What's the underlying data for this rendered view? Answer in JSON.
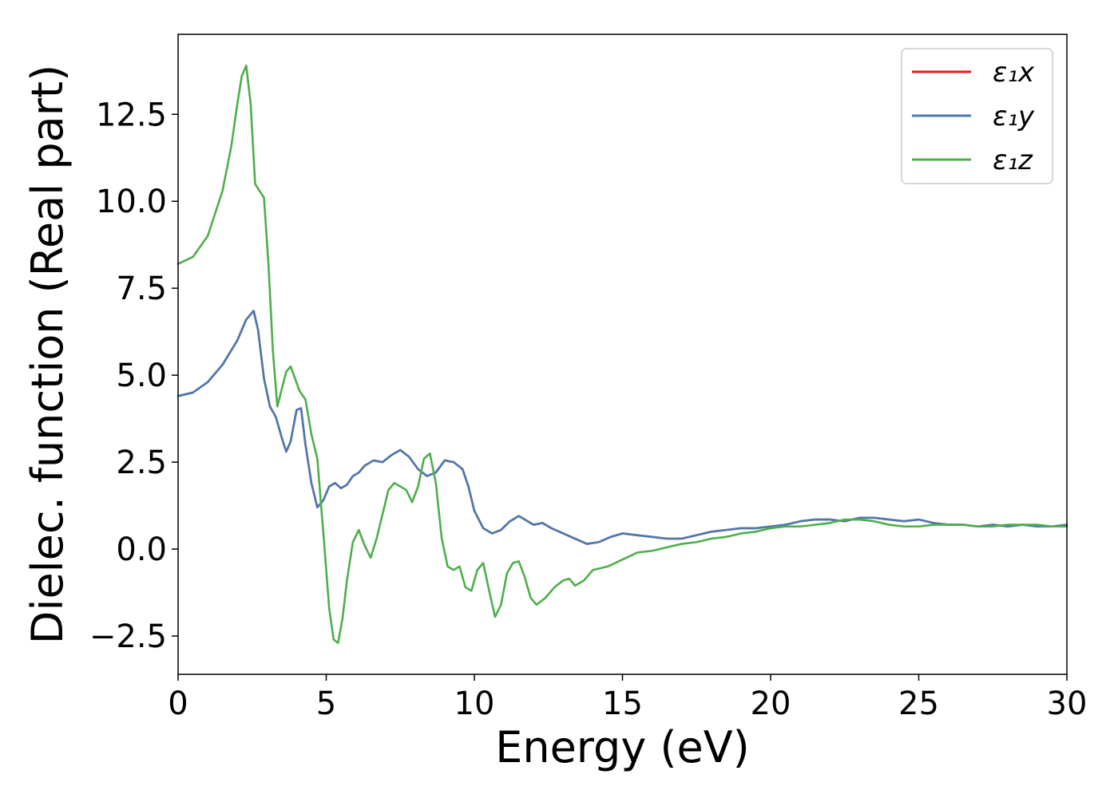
{
  "chart_data": {
    "type": "line",
    "xlabel": "Energy (eV)",
    "ylabel": "Dielec. function (Real part)",
    "xlim": [
      0,
      30
    ],
    "ylim": [
      -3.6,
      14.8
    ],
    "xticks": [
      "0",
      "5",
      "10",
      "15",
      "20",
      "25",
      "30"
    ],
    "yticks": [
      "−2.5",
      "0.0",
      "2.5",
      "5.0",
      "7.5",
      "10.0",
      "12.5"
    ],
    "legend_position": "top-right",
    "grid": false,
    "series": [
      {
        "name": "ε₁x",
        "color": "#e41a1c",
        "x": [
          0,
          0.5,
          1.0,
          1.5,
          2.0,
          2.3,
          2.55,
          2.7,
          2.9,
          3.1,
          3.3,
          3.5,
          3.65,
          3.8,
          4.0,
          4.15,
          4.3,
          4.5,
          4.7,
          4.9,
          5.1,
          5.3,
          5.5,
          5.7,
          5.9,
          6.1,
          6.3,
          6.6,
          6.9,
          7.2,
          7.5,
          7.8,
          8.1,
          8.4,
          8.7,
          9.0,
          9.3,
          9.6,
          9.8,
          10.0,
          10.3,
          10.6,
          10.9,
          11.2,
          11.5,
          11.7,
          12.0,
          12.3,
          12.6,
          13.0,
          13.4,
          13.8,
          14.2,
          14.6,
          15.0,
          15.5,
          16.0,
          16.5,
          17.0,
          17.5,
          18.0,
          18.5,
          19.0,
          19.5,
          20.0,
          20.5,
          21.0,
          21.5,
          22.0,
          22.5,
          23.0,
          23.5,
          24.0,
          24.5,
          25.0,
          25.5,
          26.0,
          26.5,
          27.0,
          27.5,
          28.0,
          28.5,
          29.0,
          29.5,
          30.0
        ],
        "y": [
          4.4,
          4.5,
          4.8,
          5.3,
          6.0,
          6.6,
          6.85,
          6.3,
          4.9,
          4.1,
          3.8,
          3.2,
          2.8,
          3.1,
          4.0,
          4.05,
          3.0,
          1.9,
          1.2,
          1.4,
          1.8,
          1.9,
          1.75,
          1.85,
          2.1,
          2.2,
          2.4,
          2.55,
          2.5,
          2.7,
          2.85,
          2.65,
          2.3,
          2.1,
          2.2,
          2.55,
          2.5,
          2.3,
          1.8,
          1.1,
          0.6,
          0.45,
          0.55,
          0.8,
          0.95,
          0.85,
          0.7,
          0.75,
          0.6,
          0.45,
          0.3,
          0.15,
          0.2,
          0.35,
          0.45,
          0.4,
          0.35,
          0.3,
          0.3,
          0.4,
          0.5,
          0.55,
          0.6,
          0.6,
          0.65,
          0.7,
          0.8,
          0.85,
          0.85,
          0.8,
          0.9,
          0.9,
          0.85,
          0.8,
          0.85,
          0.75,
          0.7,
          0.7,
          0.65,
          0.7,
          0.65,
          0.7,
          0.65,
          0.65,
          0.7
        ]
      },
      {
        "name": "ε₁y",
        "color": "#4a7ab0",
        "x": [
          0,
          0.5,
          1.0,
          1.5,
          2.0,
          2.3,
          2.55,
          2.7,
          2.9,
          3.1,
          3.3,
          3.5,
          3.65,
          3.8,
          4.0,
          4.15,
          4.3,
          4.5,
          4.7,
          4.9,
          5.1,
          5.3,
          5.5,
          5.7,
          5.9,
          6.1,
          6.3,
          6.6,
          6.9,
          7.2,
          7.5,
          7.8,
          8.1,
          8.4,
          8.7,
          9.0,
          9.3,
          9.6,
          9.8,
          10.0,
          10.3,
          10.6,
          10.9,
          11.2,
          11.5,
          11.7,
          12.0,
          12.3,
          12.6,
          13.0,
          13.4,
          13.8,
          14.2,
          14.6,
          15.0,
          15.5,
          16.0,
          16.5,
          17.0,
          17.5,
          18.0,
          18.5,
          19.0,
          19.5,
          20.0,
          20.5,
          21.0,
          21.5,
          22.0,
          22.5,
          23.0,
          23.5,
          24.0,
          24.5,
          25.0,
          25.5,
          26.0,
          26.5,
          27.0,
          27.5,
          28.0,
          28.5,
          29.0,
          29.5,
          30.0
        ],
        "y": [
          4.4,
          4.5,
          4.8,
          5.3,
          6.0,
          6.6,
          6.85,
          6.3,
          4.9,
          4.1,
          3.8,
          3.2,
          2.8,
          3.1,
          4.0,
          4.05,
          3.0,
          1.9,
          1.2,
          1.4,
          1.8,
          1.9,
          1.75,
          1.85,
          2.1,
          2.2,
          2.4,
          2.55,
          2.5,
          2.7,
          2.85,
          2.65,
          2.3,
          2.1,
          2.2,
          2.55,
          2.5,
          2.3,
          1.8,
          1.1,
          0.6,
          0.45,
          0.55,
          0.8,
          0.95,
          0.85,
          0.7,
          0.75,
          0.6,
          0.45,
          0.3,
          0.15,
          0.2,
          0.35,
          0.45,
          0.4,
          0.35,
          0.3,
          0.3,
          0.4,
          0.5,
          0.55,
          0.6,
          0.6,
          0.65,
          0.7,
          0.8,
          0.85,
          0.85,
          0.8,
          0.9,
          0.9,
          0.85,
          0.8,
          0.85,
          0.75,
          0.7,
          0.7,
          0.65,
          0.7,
          0.65,
          0.7,
          0.65,
          0.65,
          0.7
        ]
      },
      {
        "name": "ε₁z",
        "color": "#4daf4a",
        "x": [
          0,
          0.5,
          1.0,
          1.5,
          1.8,
          2.0,
          2.15,
          2.3,
          2.45,
          2.6,
          2.75,
          2.9,
          3.05,
          3.2,
          3.35,
          3.5,
          3.65,
          3.8,
          3.95,
          4.1,
          4.3,
          4.5,
          4.7,
          4.9,
          5.1,
          5.25,
          5.4,
          5.55,
          5.7,
          5.9,
          6.1,
          6.3,
          6.5,
          6.7,
          6.9,
          7.1,
          7.3,
          7.5,
          7.7,
          7.9,
          8.1,
          8.3,
          8.5,
          8.7,
          8.9,
          9.1,
          9.3,
          9.5,
          9.7,
          9.9,
          10.1,
          10.3,
          10.5,
          10.7,
          10.9,
          11.1,
          11.3,
          11.5,
          11.7,
          11.9,
          12.1,
          12.4,
          12.7,
          13.0,
          13.2,
          13.4,
          13.7,
          14.0,
          14.5,
          15.0,
          15.5,
          16.0,
          16.5,
          17.0,
          17.5,
          18.0,
          18.5,
          19.0,
          19.5,
          20.0,
          20.5,
          21.0,
          21.5,
          22.0,
          22.5,
          23.0,
          23.5,
          24.0,
          24.5,
          25.0,
          25.5,
          26.0,
          26.5,
          27.0,
          27.5,
          28.0,
          28.5,
          29.0,
          29.5,
          30.0
        ],
        "y": [
          8.2,
          8.4,
          9.0,
          10.3,
          11.6,
          12.8,
          13.6,
          13.9,
          12.8,
          10.5,
          10.3,
          10.1,
          8.2,
          5.7,
          4.1,
          4.6,
          5.1,
          5.25,
          4.9,
          4.55,
          4.3,
          3.3,
          2.6,
          0.5,
          -1.7,
          -2.6,
          -2.7,
          -2.0,
          -0.9,
          0.2,
          0.55,
          0.1,
          -0.25,
          0.3,
          1.0,
          1.7,
          1.9,
          1.8,
          1.7,
          1.35,
          1.8,
          2.6,
          2.75,
          1.9,
          0.3,
          -0.5,
          -0.6,
          -0.5,
          -1.1,
          -1.2,
          -0.6,
          -0.4,
          -1.2,
          -1.95,
          -1.6,
          -0.7,
          -0.4,
          -0.35,
          -0.8,
          -1.4,
          -1.6,
          -1.4,
          -1.1,
          -0.9,
          -0.85,
          -1.05,
          -0.9,
          -0.6,
          -0.5,
          -0.3,
          -0.1,
          -0.05,
          0.05,
          0.15,
          0.2,
          0.3,
          0.35,
          0.45,
          0.5,
          0.6,
          0.65,
          0.65,
          0.7,
          0.75,
          0.85,
          0.85,
          0.8,
          0.7,
          0.65,
          0.65,
          0.7,
          0.7,
          0.7,
          0.65,
          0.65,
          0.7,
          0.7,
          0.7,
          0.65,
          0.65
        ]
      }
    ]
  }
}
